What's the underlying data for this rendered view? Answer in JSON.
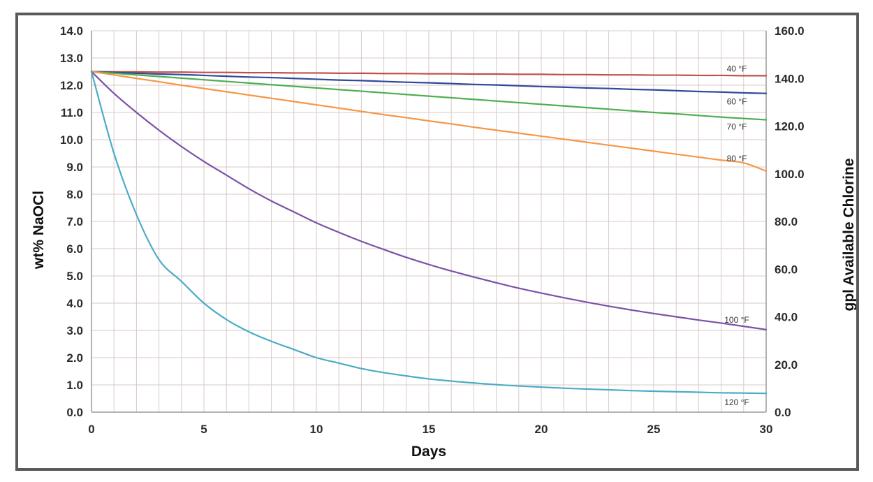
{
  "chart_data": {
    "type": "line",
    "title": "",
    "xlabel": "Days",
    "ylabel": "wt% NaOCl",
    "y2label": "gpl Available Chlorine",
    "xlim": [
      0,
      30
    ],
    "ylim": [
      0,
      14
    ],
    "y2lim": [
      0,
      160
    ],
    "grid": true,
    "legend": "inline labels at right end of each line",
    "x_ticks": [
      "0",
      "5",
      "10",
      "15",
      "20",
      "25",
      "30"
    ],
    "y_ticks": [
      "0.0",
      "1.0",
      "2.0",
      "3.0",
      "4.0",
      "5.0",
      "6.0",
      "7.0",
      "8.0",
      "9.0",
      "10.0",
      "11.0",
      "12.0",
      "13.0",
      "14.0"
    ],
    "y2_ticks": [
      "0.0",
      "20.0",
      "40.0",
      "60.0",
      "80.0",
      "100.0",
      "120.0",
      "140.0",
      "160.0"
    ],
    "x": [
      0,
      1,
      2,
      3,
      4,
      5,
      6,
      7,
      8,
      9,
      10,
      11,
      12,
      13,
      14,
      15,
      16,
      17,
      18,
      19,
      20,
      21,
      22,
      23,
      24,
      25,
      26,
      27,
      28,
      29,
      30
    ],
    "series": [
      {
        "name": "40 °F",
        "color": "#c0504d",
        "values": [
          12.5,
          12.49,
          12.49,
          12.48,
          12.48,
          12.47,
          12.47,
          12.46,
          12.46,
          12.45,
          12.45,
          12.44,
          12.44,
          12.43,
          12.43,
          12.42,
          12.42,
          12.41,
          12.41,
          12.4,
          12.4,
          12.39,
          12.39,
          12.38,
          12.38,
          12.37,
          12.37,
          12.36,
          12.36,
          12.35,
          12.35
        ]
      },
      {
        "name": "60 °F",
        "color": "#2e4a9a",
        "values": [
          12.5,
          12.47,
          12.44,
          12.41,
          12.39,
          12.36,
          12.33,
          12.3,
          12.28,
          12.25,
          12.22,
          12.19,
          12.17,
          12.14,
          12.11,
          12.09,
          12.06,
          12.03,
          12.01,
          11.98,
          11.95,
          11.93,
          11.9,
          11.88,
          11.85,
          11.83,
          11.8,
          11.77,
          11.75,
          11.72,
          11.7
        ]
      },
      {
        "name": "70 °F",
        "color": "#4caf50",
        "values": [
          12.5,
          12.44,
          12.38,
          12.32,
          12.26,
          12.2,
          12.14,
          12.08,
          12.02,
          11.96,
          11.9,
          11.84,
          11.78,
          11.72,
          11.66,
          11.6,
          11.54,
          11.48,
          11.42,
          11.36,
          11.3,
          11.24,
          11.18,
          11.12,
          11.06,
          11.0,
          10.95,
          10.89,
          10.83,
          10.78,
          10.73
        ]
      },
      {
        "name": "80 °F",
        "color": "#f79646",
        "values": [
          12.5,
          12.38,
          12.25,
          12.13,
          12.0,
          11.88,
          11.76,
          11.64,
          11.52,
          11.4,
          11.28,
          11.16,
          11.04,
          10.92,
          10.81,
          10.69,
          10.58,
          10.46,
          10.35,
          10.24,
          10.13,
          10.02,
          9.91,
          9.8,
          9.69,
          9.58,
          9.47,
          9.36,
          9.25,
          9.15,
          8.85
        ]
      },
      {
        "name": "100 °F",
        "color": "#7b52a8",
        "values": [
          12.5,
          11.7,
          11.0,
          10.35,
          9.75,
          9.2,
          8.7,
          8.2,
          7.75,
          7.35,
          6.95,
          6.6,
          6.27,
          5.97,
          5.68,
          5.42,
          5.18,
          4.96,
          4.75,
          4.55,
          4.37,
          4.2,
          4.04,
          3.89,
          3.75,
          3.62,
          3.5,
          3.38,
          3.27,
          3.15,
          3.03
        ]
      },
      {
        "name": "120 °F",
        "color": "#4bacc6",
        "values": [
          12.5,
          9.5,
          7.25,
          5.6,
          4.8,
          4.0,
          3.4,
          2.95,
          2.6,
          2.3,
          2.0,
          1.8,
          1.6,
          1.45,
          1.33,
          1.22,
          1.14,
          1.07,
          1.01,
          0.96,
          0.92,
          0.88,
          0.85,
          0.82,
          0.79,
          0.77,
          0.75,
          0.73,
          0.71,
          0.7,
          0.69
        ]
      }
    ]
  }
}
